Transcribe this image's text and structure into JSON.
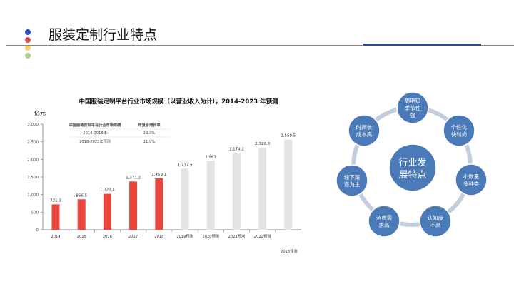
{
  "header": {
    "title": "服装定制行业特点",
    "dot_colors": [
      "#2a4fd6",
      "#d0535a",
      "#f3d46a",
      "#a9d08e"
    ]
  },
  "chart_data": {
    "type": "bar",
    "title": "中国服装定制平台行业市场规模（以营业收入为计），2014-2023 年预测",
    "ylabel": "亿元",
    "xlabel": "",
    "ylim": [
      0,
      3000
    ],
    "yticks": [
      "0",
      "500",
      "1,000",
      "1,500",
      "2,000",
      "2,500",
      "3,000"
    ],
    "categories": [
      "2014",
      "2015",
      "2016",
      "2017",
      "2018",
      "2019预测",
      "2020预测",
      "2021预测",
      "2022预测",
      "2023预测"
    ],
    "values": [
      721.3,
      866.5,
      1022.4,
      1371.2,
      1459.1,
      1737.5,
      1961,
      2174.2,
      2326.8,
      2559.5
    ],
    "labels": [
      "721.3",
      "866.5",
      "1,022.4",
      "1,371.2",
      "1,459.1",
      "1,737.5",
      "1,961",
      "2,174.2",
      "2,326.8",
      "2,559.5"
    ],
    "colors": {
      "actual": "#e8453c",
      "forecast": "#e3e3e3"
    },
    "inset_table": {
      "headers": [
        "中国服装定制平台行业市场规模",
        "年复合增长率"
      ],
      "rows": [
        [
          "2014-2018年",
          "19.3%"
        ],
        [
          "2018-2023年预测",
          "11.9%"
        ]
      ]
    }
  },
  "diagram": {
    "center": [
      "行业发",
      "展特点"
    ],
    "nodes": [
      [
        "周期短",
        "季节性",
        "强"
      ],
      [
        "个性化",
        "快时尚"
      ],
      [
        "小数量",
        "多种类"
      ],
      [
        "认知度",
        "不高"
      ],
      [
        "消费需",
        "求高"
      ],
      [
        "线下渠",
        "道为主"
      ],
      [
        "时间长",
        "成本高"
      ]
    ],
    "color": "#4a7ab8",
    "ring_color": "#c3cedd"
  }
}
